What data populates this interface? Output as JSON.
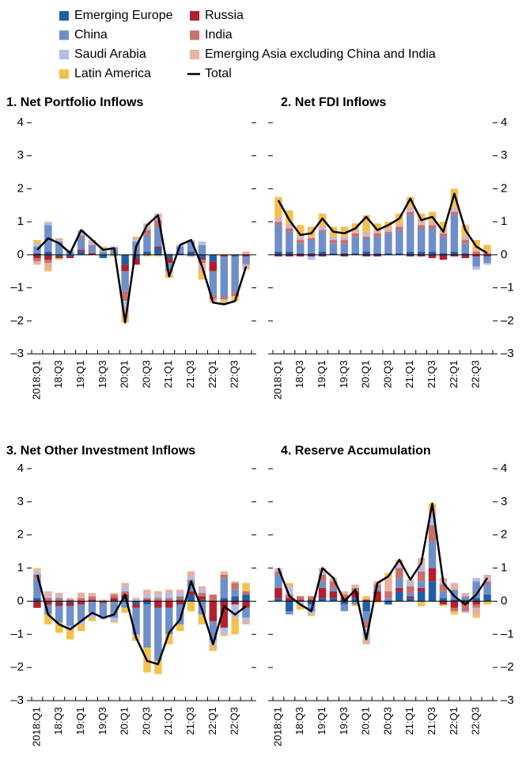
{
  "chart_data": [
    {
      "type": "stacked-bar-line",
      "title": "1. Net Portfolio Inflows",
      "y_axis_side": "left",
      "categories": [
        "2018:Q1",
        null,
        "18:Q3",
        null,
        "19:Q1",
        null,
        "19:Q3",
        null,
        "20:Q1",
        null,
        "20:Q3",
        null,
        "21:Q1",
        null,
        "21:Q3",
        null,
        "22:Q1",
        null,
        "22:Q3",
        null
      ],
      "ylim": [
        -3,
        4
      ],
      "yticks": [
        {
          "value": -3,
          "label": "–3"
        },
        {
          "value": -2,
          "label": "–2"
        },
        {
          "value": -1,
          "label": "–1"
        },
        0,
        1,
        2,
        3,
        4
      ],
      "series": [
        {
          "name": "Emerging Europe",
          "color": "#1f5fa8",
          "values": [
            0.05,
            0.1,
            -0.05,
            -0.05,
            0.1,
            0,
            -0.1,
            0,
            -0.3,
            -0.1,
            0.1,
            0.2,
            -0.1,
            0.05,
            0.1,
            -0.1,
            -0.2,
            0,
            -0.05,
            0
          ]
        },
        {
          "name": "Russia",
          "color": "#b21f2d",
          "values": [
            -0.1,
            -0.15,
            -0.05,
            -0.05,
            0.05,
            0.05,
            0,
            0,
            -0.2,
            -0.2,
            0,
            0.05,
            -0.15,
            0,
            0,
            -0.05,
            -0.3,
            -0.05,
            0,
            -0.05
          ]
        },
        {
          "name": "China",
          "color": "#6f8fc9",
          "values": [
            0.2,
            0.8,
            0.4,
            0.1,
            0.4,
            0.2,
            0.1,
            0.15,
            -0.6,
            0.4,
            0.5,
            0.6,
            -0.2,
            0.2,
            0.3,
            0.3,
            -0.7,
            -1.2,
            -1.1,
            -0.2
          ]
        },
        {
          "name": "India",
          "color": "#c8706b",
          "values": [
            -0.1,
            -0.1,
            0,
            0,
            0.05,
            0.05,
            0,
            0.05,
            -0.3,
            0,
            0.15,
            0.2,
            -0.05,
            0,
            -0.05,
            -0.1,
            -0.15,
            -0.1,
            -0.1,
            -0.05
          ]
        },
        {
          "name": "Saudi Arabia",
          "color": "#b4bde6",
          "values": [
            0.1,
            0.1,
            0.05,
            0.05,
            0.1,
            0.1,
            0.1,
            0.05,
            -0.2,
            0.1,
            0.1,
            0.1,
            0.05,
            0.05,
            0.05,
            0.1,
            0,
            -0.05,
            0,
            -0.1
          ]
        },
        {
          "name": "Emerging Asia excluding China and India",
          "color": "#e8b0a3",
          "values": [
            -0.1,
            -0.2,
            0.05,
            0,
            0.05,
            0.05,
            0,
            0,
            -0.3,
            0,
            0.1,
            0.1,
            -0.1,
            0,
            0,
            -0.3,
            -0.1,
            0,
            0,
            0.1
          ]
        },
        {
          "name": "Latin America",
          "color": "#f2c14e",
          "values": [
            0.1,
            -0.05,
            -0.05,
            0,
            0,
            0,
            0.05,
            -0.05,
            -0.15,
            0.05,
            -0.05,
            -0.05,
            -0.1,
            0,
            0,
            -0.2,
            0,
            -0.1,
            -0.15,
            -0.05
          ]
        },
        {
          "name": "Total",
          "color": "#000000",
          "mark": "line",
          "values": [
            0.15,
            0.5,
            0.35,
            0.05,
            0.75,
            0.45,
            0.15,
            0.2,
            -2.05,
            0.25,
            0.9,
            1.2,
            -0.65,
            0.3,
            0.45,
            -0.35,
            -1.45,
            -1.5,
            -1.4,
            -0.35
          ]
        }
      ]
    },
    {
      "type": "stacked-bar-line",
      "title": "2. Net FDI Inflows",
      "y_axis_side": "right",
      "categories": [
        "2018:Q1",
        null,
        "18:Q3",
        null,
        "19:Q1",
        null,
        "19:Q3",
        null,
        "20:Q1",
        null,
        "20:Q3",
        null,
        "21:Q1",
        null,
        "21:Q3",
        null,
        "22:Q1",
        null,
        "22:Q3",
        null
      ],
      "ylim": [
        -3,
        4
      ],
      "yticks": [
        {
          "value": -3,
          "label": "–3"
        },
        {
          "value": -2,
          "label": "–2"
        },
        {
          "value": -1,
          "label": "–1"
        },
        0,
        1,
        2,
        3,
        4
      ],
      "series": [
        {
          "name": "Emerging Europe",
          "color": "#1f5fa8",
          "values": [
            0.1,
            0.1,
            0.05,
            0.05,
            0.1,
            0.05,
            0.05,
            0.05,
            0.1,
            0.05,
            0.05,
            0.05,
            0.1,
            0.1,
            0.1,
            0.05,
            0.1,
            0.05,
            0,
            0
          ]
        },
        {
          "name": "Russia",
          "color": "#b21f2d",
          "values": [
            -0.05,
            -0.05,
            -0.05,
            -0.05,
            -0.05,
            0,
            -0.05,
            0,
            -0.05,
            -0.05,
            0,
            0,
            -0.05,
            -0.05,
            -0.1,
            -0.15,
            -0.05,
            -0.1,
            -0.05,
            -0.05
          ]
        },
        {
          "name": "China",
          "color": "#6f8fc9",
          "values": [
            0.8,
            0.6,
            0.3,
            0.4,
            0.6,
            0.3,
            0.3,
            0.5,
            0.4,
            0.5,
            0.6,
            0.7,
            1.1,
            0.7,
            0.7,
            0.5,
            1.1,
            0.3,
            -0.3,
            -0.2
          ]
        },
        {
          "name": "India",
          "color": "#c8706b",
          "values": [
            0.1,
            0.1,
            0.1,
            0.05,
            0.05,
            0.1,
            0.1,
            0.1,
            0.05,
            0.1,
            0.05,
            0.1,
            0.1,
            0.1,
            0.1,
            0.1,
            0.1,
            0.1,
            0.1,
            0.05
          ]
        },
        {
          "name": "Saudi Arabia",
          "color": "#b4bde6",
          "values": [
            0.05,
            0.05,
            0.05,
            -0.1,
            0.05,
            0.05,
            0.05,
            0,
            0.05,
            0,
            0.05,
            0,
            0.05,
            0.05,
            0,
            0,
            0.05,
            0.05,
            -0.1,
            -0.05
          ]
        },
        {
          "name": "Emerging Asia excluding China and India",
          "color": "#e8b0a3",
          "values": [
            0.1,
            0.1,
            0.05,
            0.05,
            0.1,
            0.05,
            0.05,
            0.1,
            0.1,
            0.1,
            0.05,
            0.1,
            0.1,
            0.1,
            0.1,
            0.1,
            0.1,
            0.05,
            0.05,
            0.05
          ]
        },
        {
          "name": "Latin America",
          "color": "#f2c14e",
          "values": [
            0.6,
            0.4,
            0.35,
            0.3,
            0.35,
            0.3,
            0.3,
            0.2,
            0.5,
            0.2,
            0.2,
            0.3,
            0.3,
            0.2,
            0.3,
            0.25,
            0.55,
            0.35,
            0.3,
            0.2
          ]
        },
        {
          "name": "Total",
          "color": "#000000",
          "mark": "line",
          "values": [
            1.65,
            1.05,
            0.6,
            0.65,
            1.1,
            0.7,
            0.65,
            0.8,
            1.15,
            0.75,
            0.9,
            1.1,
            1.7,
            1.05,
            1.15,
            0.7,
            1.85,
            0.75,
            0.25,
            0.05
          ]
        }
      ]
    },
    {
      "type": "stacked-bar-line",
      "title": "3. Net Other Investment Inflows",
      "y_axis_side": "left",
      "categories": [
        "2018:Q1",
        null,
        "18:Q3",
        null,
        "19:Q1",
        null,
        "19:Q3",
        null,
        "20:Q1",
        null,
        "20:Q3",
        null,
        "21:Q1",
        null,
        "21:Q3",
        null,
        "22:Q1",
        null,
        "22:Q3",
        null
      ],
      "ylim": [
        -3,
        4
      ],
      "yticks": [
        {
          "value": -3,
          "label": "–3"
        },
        {
          "value": -2,
          "label": "–2"
        },
        {
          "value": -1,
          "label": "–1"
        },
        0,
        1,
        2,
        3,
        4
      ],
      "series": [
        {
          "name": "Emerging Europe",
          "color": "#1f5fa8",
          "values": [
            0.1,
            0,
            -0.05,
            -0.05,
            0,
            0,
            0,
            0,
            0.1,
            -0.1,
            -0.1,
            0,
            0,
            0.05,
            0.2,
            0.05,
            0,
            0.1,
            0.15,
            0.2
          ]
        },
        {
          "name": "Russia",
          "color": "#b21f2d",
          "values": [
            -0.2,
            -0.1,
            -0.1,
            -0.1,
            -0.1,
            0.05,
            -0.05,
            0.1,
            0.1,
            -0.1,
            0.05,
            -0.2,
            -0.2,
            -0.1,
            0.1,
            0.1,
            -0.6,
            -0.8,
            -0.1,
            -0.2
          ]
        },
        {
          "name": "China",
          "color": "#6f8fc9",
          "values": [
            0.6,
            -0.3,
            -0.5,
            -0.6,
            -0.5,
            -0.35,
            -0.4,
            -0.5,
            -0.2,
            -0.8,
            -1.3,
            -1.6,
            -0.8,
            -0.6,
            0.3,
            -0.4,
            -0.6,
            0.6,
            0.2,
            -0.3
          ]
        },
        {
          "name": "India",
          "color": "#c8706b",
          "values": [
            0.1,
            0.1,
            0.1,
            0.05,
            0.1,
            0.1,
            0,
            0.1,
            0.1,
            0,
            0.05,
            0.1,
            0.1,
            0.1,
            0.05,
            0.1,
            0.2,
            0.1,
            0.2,
            0.1
          ]
        },
        {
          "name": "Saudi Arabia",
          "color": "#b4bde6",
          "values": [
            0.1,
            0.05,
            0.05,
            -0.1,
            -0.1,
            -0.15,
            -0.1,
            -0.1,
            0.15,
            -0.05,
            0.1,
            0.1,
            0.15,
            0.1,
            0.1,
            0.1,
            -0.1,
            -0.2,
            -0.4,
            -0.1
          ]
        },
        {
          "name": "Emerging Asia excluding China and India",
          "color": "#e8b0a3",
          "values": [
            0.05,
            0.15,
            0.1,
            0.05,
            0.15,
            0.1,
            0.05,
            0.05,
            0.1,
            0.1,
            0.15,
            0.1,
            0.1,
            0.1,
            0.15,
            0.1,
            -0.1,
            0.1,
            0.05,
            -0.1
          ]
        },
        {
          "name": "Latin America",
          "color": "#f2c14e",
          "values": [
            0.05,
            -0.3,
            -0.3,
            -0.3,
            -0.2,
            -0.1,
            0,
            -0.05,
            -0.15,
            -0.15,
            -0.75,
            -0.4,
            -0.3,
            -0.2,
            -0.3,
            -0.3,
            -0.1,
            -0.05,
            -0.5,
            0.25
          ]
        },
        {
          "name": "Total",
          "color": "#000000",
          "mark": "line",
          "values": [
            0.8,
            -0.4,
            -0.7,
            -0.85,
            -0.6,
            -0.35,
            -0.5,
            -0.4,
            0.2,
            -1.1,
            -1.8,
            -1.9,
            -0.95,
            -0.55,
            0.6,
            -0.25,
            -1.3,
            -0.15,
            -0.4,
            -0.15
          ]
        }
      ]
    },
    {
      "type": "stacked-bar-line",
      "title": "4. Reserve Accumulation",
      "y_axis_side": "right",
      "categories": [
        "2018:Q1",
        null,
        "18:Q3",
        null,
        "19:Q1",
        null,
        "19:Q3",
        null,
        "20:Q1",
        null,
        "20:Q3",
        null,
        "21:Q1",
        null,
        "21:Q3",
        null,
        "22:Q1",
        null,
        "22:Q3",
        null
      ],
      "ylim": [
        -3,
        4
      ],
      "yticks": [
        {
          "value": -3,
          "label": "–3"
        },
        {
          "value": -2,
          "label": "–2"
        },
        {
          "value": -1,
          "label": "–1"
        },
        0,
        1,
        2,
        3,
        4
      ],
      "series": [
        {
          "name": "Emerging Europe",
          "color": "#1f5fa8",
          "values": [
            0.1,
            -0.3,
            0,
            -0.1,
            0.1,
            0.1,
            -0.1,
            0.1,
            -0.3,
            0,
            -0.1,
            0.3,
            0.1,
            0.3,
            0.6,
            0.1,
            0.05,
            0.05,
            0.1,
            0.2
          ]
        },
        {
          "name": "Russia",
          "color": "#b21f2d",
          "values": [
            0.3,
            0.1,
            0.05,
            0.05,
            0.3,
            0.2,
            0.1,
            0.2,
            0.05,
            0.3,
            0,
            0.1,
            0.05,
            0.1,
            0.4,
            -0.1,
            -0.2,
            -0.1,
            -0.1,
            0
          ]
        },
        {
          "name": "China",
          "color": "#6f8fc9",
          "values": [
            0.4,
            -0.1,
            0,
            -0.2,
            0.2,
            0.1,
            -0.2,
            -0.1,
            -0.3,
            0.1,
            0.1,
            0.3,
            0.1,
            0.2,
            0.8,
            0.2,
            0.3,
            0.1,
            0.5,
            0.3
          ]
        },
        {
          "name": "India",
          "color": "#c8706b",
          "values": [
            0.1,
            0.1,
            0.1,
            0.1,
            0.2,
            0.2,
            0.1,
            0.1,
            -0.2,
            0.1,
            0.2,
            0.3,
            0.2,
            0.3,
            0.5,
            0.2,
            -0.1,
            -0.2,
            -0.1,
            0.1
          ]
        },
        {
          "name": "Saudi Arabia",
          "color": "#b4bde6",
          "values": [
            0.1,
            0.2,
            -0.1,
            -0.1,
            0.1,
            0,
            0,
            0,
            -0.3,
            0,
            0,
            0.1,
            0.1,
            0.2,
            0.3,
            0.1,
            0,
            -0.05,
            0.1,
            0.1
          ]
        },
        {
          "name": "Emerging Asia excluding China and India",
          "color": "#e8b0a3",
          "values": [
            0,
            0.1,
            0,
            0,
            0.1,
            0.1,
            0.1,
            0.1,
            -0.2,
            0.1,
            0.4,
            0.1,
            0.1,
            0.2,
            0.2,
            0.1,
            0.2,
            0.1,
            -0.2,
            0.1
          ]
        },
        {
          "name": "Latin America",
          "color": "#f2c14e",
          "values": [
            0,
            0.05,
            -0.15,
            -0.05,
            0,
            0,
            0,
            -0.05,
            0.1,
            -0.05,
            0.15,
            0.05,
            0,
            -0.15,
            0.15,
            -0.05,
            -0.1,
            0,
            -0.1,
            -0.1
          ]
        },
        {
          "name": "Total",
          "color": "#000000",
          "mark": "line",
          "values": [
            1.0,
            0.15,
            -0.1,
            -0.3,
            1.0,
            0.7,
            0,
            0.35,
            -1.15,
            0.55,
            0.75,
            1.25,
            0.65,
            1.15,
            2.95,
            0.55,
            0.15,
            -0.1,
            0.2,
            0.7
          ]
        }
      ]
    }
  ]
}
